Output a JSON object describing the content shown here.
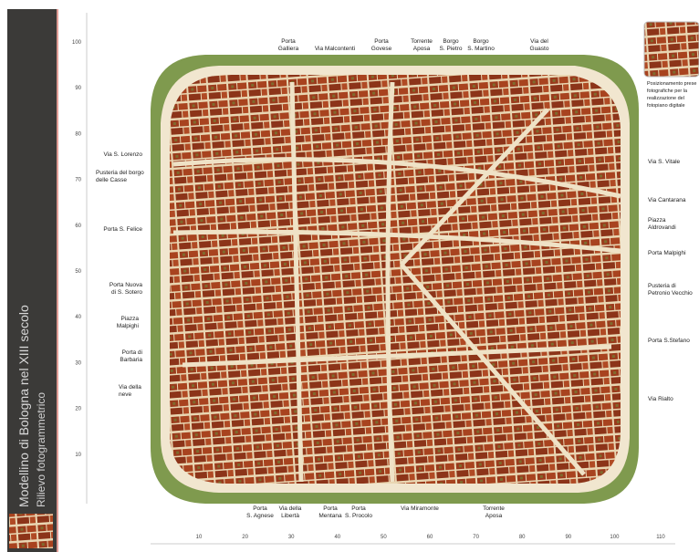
{
  "sidebar": {
    "title": "Modellino di Bologna nel XIII secolo",
    "subtitle": "Rilievo fotogrammetrico"
  },
  "thumbnail_caption": [
    "Posizionamento prese",
    "fotografiche per la",
    "realizzazione del",
    "fotopiano digitale"
  ],
  "axes": {
    "left": [
      100,
      90,
      80,
      70,
      60,
      50,
      40,
      30,
      20,
      10
    ],
    "bottom": [
      10,
      20,
      30,
      40,
      50,
      60,
      70,
      80,
      90,
      100,
      110
    ]
  },
  "labels": {
    "top": [
      [
        "Porta",
        "Galliera"
      ],
      [
        "Via Malcontenti"
      ],
      [
        "Porta",
        "Govese"
      ],
      [
        "Torrente",
        "Aposa"
      ],
      [
        "Borgo",
        "S. Pietro"
      ],
      [
        "Borgo",
        "S. Martino"
      ],
      [
        "Via del",
        "Guasto"
      ]
    ],
    "left": [
      [
        "Via S. Lorenzo"
      ],
      [
        "Pusteria del borgo",
        "delle Casse"
      ],
      [
        "Porta S. Felice"
      ],
      [
        "Porta Nuova",
        "di S. Sotero"
      ],
      [
        "Piazza",
        "Malpighi"
      ],
      [
        "Porta di",
        "Barbaria"
      ],
      [
        "Via della",
        "neve"
      ]
    ],
    "right": [
      [
        "Via S. Vitale"
      ],
      [
        "Via Cantarana"
      ],
      [
        "Piazza",
        "Aldrovandi"
      ],
      [
        "Porta Malpighi"
      ],
      [
        "Pusteria di",
        "Petronio Vecchio"
      ],
      [
        "Porta S.Stefano"
      ],
      [
        "Via Rialto"
      ]
    ],
    "bottom": [
      [
        "Porta",
        "S. Agnese"
      ],
      [
        "Via della",
        "Libertà"
      ],
      [
        "Porta",
        "Mentana"
      ],
      [
        "Porta",
        "S. Procolo"
      ],
      [
        "Via Miramonte"
      ],
      [
        "Torrente",
        "Aposa"
      ]
    ]
  }
}
